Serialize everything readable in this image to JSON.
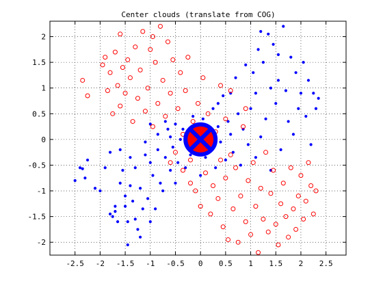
{
  "chart_data": {
    "type": "scatter",
    "title": "Center clouds (translate from COG)",
    "xlabel": "",
    "ylabel": "",
    "xlim": [
      -3.0,
      2.9
    ],
    "ylim": [
      -2.25,
      2.3
    ],
    "xticks": [
      "-2.5",
      "-2",
      "-1.5",
      "-1",
      "-0.5",
      "0",
      "0.5",
      "1",
      "1.5",
      "2",
      "2.5"
    ],
    "xtick_values": [
      -2.5,
      -2,
      -1.5,
      -1,
      -0.5,
      0,
      0.5,
      1,
      1.5,
      2,
      2.5
    ],
    "yticks": [
      "-2",
      "-1.5",
      "-1",
      "-0.5",
      "0",
      "0.5",
      "1",
      "1.5",
      "2"
    ],
    "ytick_values": [
      -2,
      -1.5,
      -1,
      -0.5,
      0,
      0.5,
      1,
      1.5,
      2
    ],
    "grid": true,
    "grid_style": "dotted",
    "colors": {
      "series1": "#0000ff",
      "series2": "#ff0000",
      "axes": "#000000"
    },
    "series": [
      {
        "marker": "dot",
        "color": "#0000ff",
        "points": [
          [
            -2.5,
            -0.8
          ],
          [
            -2.4,
            -0.55
          ],
          [
            -2.35,
            -0.57
          ],
          [
            -2.3,
            -0.75
          ],
          [
            -2.25,
            -0.4
          ],
          [
            -2.1,
            -0.95
          ],
          [
            -2.0,
            -1.0
          ],
          [
            -1.9,
            -0.55
          ],
          [
            -1.8,
            -0.25
          ],
          [
            -1.8,
            -1.45
          ],
          [
            -1.75,
            -1.5
          ],
          [
            -1.7,
            -1.4
          ],
          [
            -1.7,
            -1.3
          ],
          [
            -1.65,
            -1.6
          ],
          [
            -1.6,
            -0.2
          ],
          [
            -1.6,
            -0.85
          ],
          [
            -1.55,
            -0.6
          ],
          [
            -1.5,
            -1.1
          ],
          [
            -1.5,
            -1.3
          ],
          [
            -1.45,
            -1.6
          ],
          [
            -1.45,
            -2.05
          ],
          [
            -1.4,
            -0.35
          ],
          [
            -1.4,
            -0.9
          ],
          [
            -1.35,
            -1.2
          ],
          [
            -1.3,
            -0.55
          ],
          [
            -1.3,
            -1.55
          ],
          [
            -1.25,
            -1.75
          ],
          [
            -1.2,
            -0.95
          ],
          [
            -1.2,
            -1.9
          ],
          [
            -1.15,
            -1.35
          ],
          [
            -1.1,
            -0.05
          ],
          [
            -1.1,
            -0.3
          ],
          [
            -1.05,
            -1.15
          ],
          [
            -1.0,
            0.3
          ],
          [
            -1.0,
            -0.45
          ],
          [
            -1.0,
            -1.6
          ],
          [
            -0.95,
            -0.7
          ],
          [
            -0.9,
            -1.35
          ],
          [
            -0.85,
            0.1
          ],
          [
            -0.85,
            -0.2
          ],
          [
            -0.8,
            -0.85
          ],
          [
            -0.75,
            -1.0
          ],
          [
            -0.7,
            0.35
          ],
          [
            -0.7,
            -0.35
          ],
          [
            -0.65,
            0.2
          ],
          [
            -0.6,
            0.05
          ],
          [
            -0.6,
            -0.6
          ],
          [
            -0.55,
            -0.15
          ],
          [
            -0.5,
            0.3
          ],
          [
            -0.5,
            -0.85
          ],
          [
            -0.45,
            -0.45
          ],
          [
            -0.4,
            0.0
          ],
          [
            -0.35,
            0.2
          ],
          [
            -0.3,
            -0.55
          ],
          [
            -0.2,
            -0.3
          ],
          [
            -0.15,
            0.45
          ],
          [
            0.0,
            -0.7
          ],
          [
            0.05,
            0.4
          ],
          [
            0.1,
            -0.35
          ],
          [
            0.2,
            -0.2
          ],
          [
            0.25,
            0.6
          ],
          [
            0.3,
            -0.55
          ],
          [
            0.35,
            0.7
          ],
          [
            0.4,
            -0.05
          ],
          [
            0.45,
            0.85
          ],
          [
            0.5,
            -0.4
          ],
          [
            0.55,
            0.35
          ],
          [
            0.6,
            0.1
          ],
          [
            0.6,
            0.9
          ],
          [
            0.65,
            -0.25
          ],
          [
            0.7,
            1.2
          ],
          [
            0.75,
            0.5
          ],
          [
            0.8,
            -0.5
          ],
          [
            0.85,
            0.2
          ],
          [
            0.9,
            1.45
          ],
          [
            0.95,
            -0.1
          ],
          [
            1.0,
            0.6
          ],
          [
            1.05,
            1.3
          ],
          [
            1.1,
            0.9
          ],
          [
            1.1,
            -0.35
          ],
          [
            1.15,
            1.75
          ],
          [
            1.2,
            0.05
          ],
          [
            1.25,
            1.5
          ],
          [
            1.3,
            0.4
          ],
          [
            1.35,
            2.05
          ],
          [
            1.4,
            1.0
          ],
          [
            1.4,
            -0.6
          ],
          [
            1.45,
            1.85
          ],
          [
            1.5,
            0.7
          ],
          [
            1.55,
            1.15
          ],
          [
            1.6,
            -0.2
          ],
          [
            1.65,
            2.2
          ],
          [
            1.7,
            0.95
          ],
          [
            1.75,
            0.35
          ],
          [
            1.8,
            1.6
          ],
          [
            1.85,
            0.1
          ],
          [
            1.9,
            1.3
          ],
          [
            1.95,
            0.6
          ],
          [
            2.0,
            0.9
          ],
          [
            2.05,
            1.5
          ],
          [
            2.1,
            0.45
          ],
          [
            2.15,
            1.15
          ],
          [
            2.2,
            -0.1
          ],
          [
            2.25,
            0.9
          ],
          [
            2.3,
            0.6
          ],
          [
            2.35,
            0.8
          ],
          [
            1.2,
            2.1
          ],
          [
            1.55,
            1.65
          ],
          [
            0.15,
            -0.05
          ],
          [
            -0.25,
            0.1
          ],
          [
            0.35,
            0.25
          ],
          [
            -0.15,
            -0.15
          ]
        ]
      },
      {
        "marker": "circle",
        "color": "#ff0000",
        "points": [
          [
            -2.35,
            1.15
          ],
          [
            -2.25,
            0.85
          ],
          [
            -1.95,
            1.45
          ],
          [
            -1.9,
            1.6
          ],
          [
            -1.85,
            0.95
          ],
          [
            -1.8,
            1.3
          ],
          [
            -1.75,
            0.5
          ],
          [
            -1.7,
            1.7
          ],
          [
            -1.65,
            1.05
          ],
          [
            -1.6,
            0.65
          ],
          [
            -1.55,
            1.4
          ],
          [
            -1.5,
            0.9
          ],
          [
            -1.45,
            1.55
          ],
          [
            -1.4,
            1.2
          ],
          [
            -1.35,
            0.35
          ],
          [
            -1.3,
            1.8
          ],
          [
            -1.25,
            0.8
          ],
          [
            -1.2,
            1.35
          ],
          [
            -1.15,
            2.1
          ],
          [
            -1.1,
            0.55
          ],
          [
            -1.05,
            1.0
          ],
          [
            -1.0,
            1.75
          ],
          [
            -0.95,
            0.25
          ],
          [
            -0.9,
            1.5
          ],
          [
            -0.85,
            0.7
          ],
          [
            -0.8,
            2.2
          ],
          [
            -0.75,
            1.15
          ],
          [
            -0.7,
            0.45
          ],
          [
            -0.65,
            1.9
          ],
          [
            -0.6,
            0.9
          ],
          [
            -0.55,
            1.55
          ],
          [
            -0.5,
            -0.25
          ],
          [
            -0.45,
            0.6
          ],
          [
            -0.4,
            1.3
          ],
          [
            -0.35,
            -0.6
          ],
          [
            -0.3,
            0.95
          ],
          [
            -0.25,
            1.6
          ],
          [
            -0.2,
            -0.85
          ],
          [
            -0.15,
            0.35
          ],
          [
            -0.1,
            -1.0
          ],
          [
            -0.05,
            0.7
          ],
          [
            0.0,
            -1.3
          ],
          [
            0.05,
            1.2
          ],
          [
            0.1,
            -0.65
          ],
          [
            0.15,
            0.5
          ],
          [
            0.2,
            -1.45
          ],
          [
            0.25,
            -0.9
          ],
          [
            0.3,
            0.15
          ],
          [
            0.35,
            -1.15
          ],
          [
            0.4,
            -0.4
          ],
          [
            0.45,
            -1.7
          ],
          [
            0.5,
            -0.75
          ],
          [
            0.55,
            -1.95
          ],
          [
            0.6,
            -0.3
          ],
          [
            0.65,
            -1.35
          ],
          [
            0.7,
            -0.55
          ],
          [
            0.75,
            -2.0
          ],
          [
            0.8,
            -1.1
          ],
          [
            0.85,
            0.25
          ],
          [
            0.9,
            -1.6
          ],
          [
            0.95,
            -0.8
          ],
          [
            1.0,
            -1.85
          ],
          [
            1.05,
            -0.45
          ],
          [
            1.1,
            -1.3
          ],
          [
            1.15,
            -2.2
          ],
          [
            1.2,
            -0.95
          ],
          [
            1.25,
            -1.55
          ],
          [
            1.3,
            -0.25
          ],
          [
            1.35,
            -1.8
          ],
          [
            1.4,
            -1.05
          ],
          [
            1.45,
            -0.6
          ],
          [
            1.5,
            -1.65
          ],
          [
            1.55,
            -2.05
          ],
          [
            1.6,
            -1.25
          ],
          [
            1.65,
            -0.85
          ],
          [
            1.7,
            -1.5
          ],
          [
            1.75,
            -1.9
          ],
          [
            1.8,
            -0.55
          ],
          [
            1.85,
            -1.35
          ],
          [
            1.9,
            -1.75
          ],
          [
            1.95,
            -1.1
          ],
          [
            2.0,
            -0.7
          ],
          [
            2.05,
            -1.55
          ],
          [
            2.1,
            -1.2
          ],
          [
            2.15,
            -0.45
          ],
          [
            2.2,
            -0.9
          ],
          [
            2.25,
            -1.45
          ],
          [
            2.3,
            -1.0
          ],
          [
            -1.6,
            2.05
          ],
          [
            -0.95,
            2.0
          ],
          [
            0.6,
            0.95
          ],
          [
            -0.35,
            0.1
          ],
          [
            0.25,
            -0.1
          ],
          [
            0.5,
            0.4
          ],
          [
            -0.6,
            -0.45
          ],
          [
            0.9,
            0.6
          ],
          [
            -0.2,
            -0.4
          ],
          [
            0.4,
            1.05
          ]
        ]
      }
    ],
    "center_marker": {
      "x": 0,
      "y": 0,
      "shape": "circle-x",
      "fill": "#ff0000",
      "stroke": "#0000ff"
    }
  }
}
